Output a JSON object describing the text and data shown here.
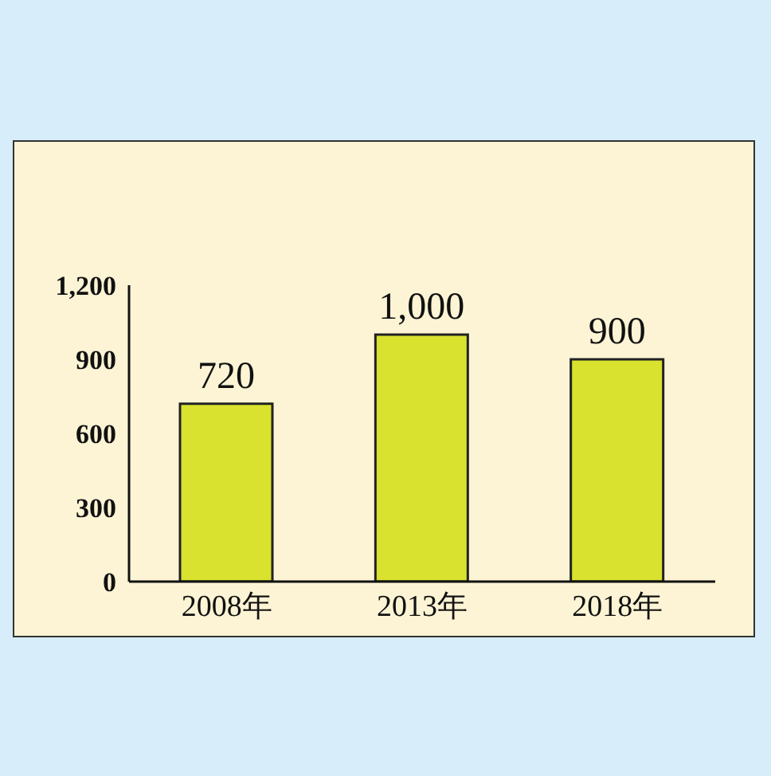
{
  "chart_data": {
    "type": "bar",
    "categories": [
      "2008年",
      "2013年",
      "2018年"
    ],
    "values": [
      720,
      1000,
      900
    ],
    "color": "#d9e22e",
    "value_labels": [
      "720",
      "1,000",
      "900"
    ],
    "ylim": [
      0,
      1200
    ],
    "yticks": [
      0,
      300,
      600,
      900,
      {
        "value": 1200,
        "label": "1,200"
      }
    ],
    "grid": false
  }
}
